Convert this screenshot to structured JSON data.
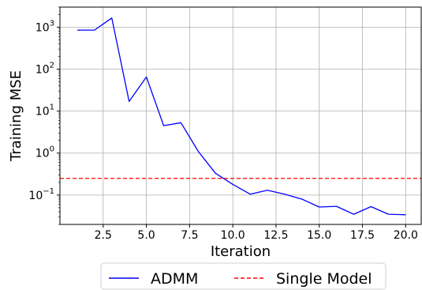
{
  "chart_data": {
    "type": "line",
    "title": "",
    "xlabel": "Iteration",
    "ylabel": "Training MSE",
    "y_scale": "log",
    "xlim": [
      0.0,
      20.9
    ],
    "ylim": [
      0.02,
      3000
    ],
    "x_ticks": [
      2.5,
      5.0,
      7.5,
      10.0,
      12.5,
      15.0,
      17.5,
      20.0
    ],
    "x_tick_labels": [
      "2.5",
      "5.0",
      "7.5",
      "10.0",
      "12.5",
      "15.0",
      "17.5",
      "20.0"
    ],
    "y_ticks": [
      {
        "value": 1000,
        "base": "10",
        "exp": "3"
      },
      {
        "value": 100,
        "base": "10",
        "exp": "2"
      },
      {
        "value": 10,
        "base": "10",
        "exp": "1"
      },
      {
        "value": 1,
        "base": "10",
        "exp": "0"
      },
      {
        "value": 0.1,
        "base": "10",
        "exp": "−1"
      }
    ],
    "grid": true,
    "legend_position": "bottom-center-outside",
    "series": [
      {
        "name": "ADMM",
        "color": "#0000ff",
        "style": "solid",
        "x": [
          1,
          2,
          3,
          4,
          5,
          6,
          7,
          8,
          9,
          10,
          11,
          12,
          13,
          14,
          15,
          16,
          17,
          18,
          19,
          20
        ],
        "y": [
          850,
          850,
          1650,
          17,
          65,
          4.5,
          5.3,
          1.1,
          0.33,
          0.18,
          0.105,
          0.13,
          0.105,
          0.08,
          0.052,
          0.054,
          0.035,
          0.053,
          0.035,
          0.034
        ]
      },
      {
        "name": "Single Model",
        "color": "#ff0000",
        "style": "dashed",
        "hline": 0.25
      }
    ]
  }
}
